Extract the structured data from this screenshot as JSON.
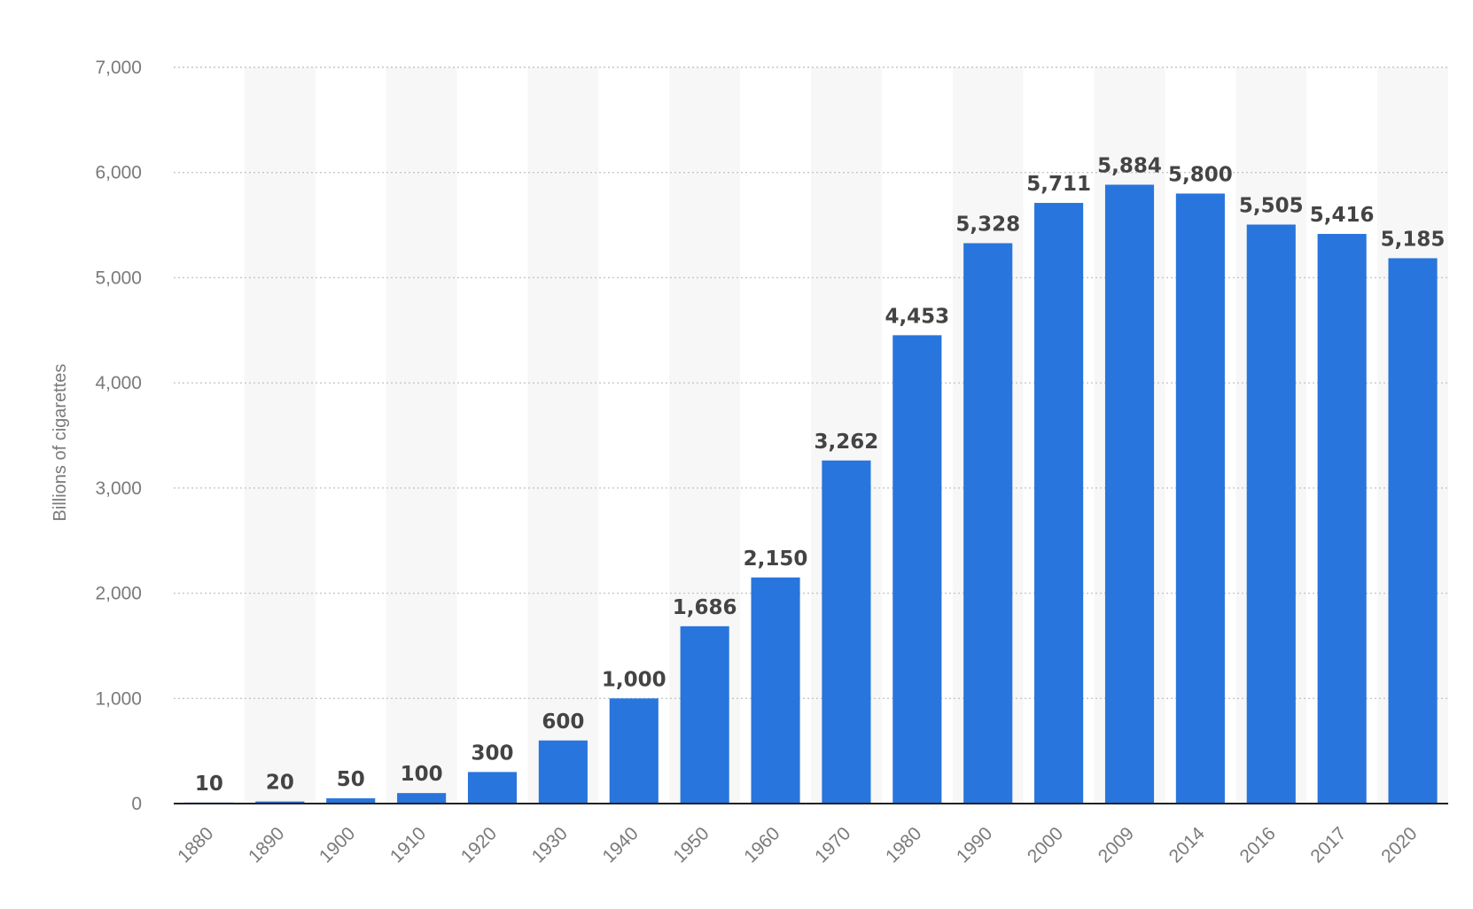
{
  "chart_data": {
    "type": "bar",
    "categories": [
      "1880",
      "1890",
      "1900",
      "1910",
      "1920",
      "1930",
      "1940",
      "1950",
      "1960",
      "1970",
      "1980",
      "1990",
      "2000",
      "2009",
      "2014",
      "2016",
      "2017",
      "2020"
    ],
    "values": [
      10,
      20,
      50,
      100,
      300,
      600,
      1000,
      1686,
      2150,
      3262,
      4453,
      5328,
      5711,
      5884,
      5800,
      5505,
      5416,
      5185
    ],
    "value_labels": [
      "10",
      "20",
      "50",
      "100",
      "300",
      "600",
      "1,000",
      "1,686",
      "2,150",
      "3,262",
      "4,453",
      "5,328",
      "5,711",
      "5,884",
      "5,800",
      "5,505",
      "5,416",
      "5,185"
    ],
    "ylabel": "Billions of cigarettes",
    "xlabel": "",
    "ylim": [
      0,
      7000
    ],
    "yticks": [
      0,
      1000,
      2000,
      3000,
      4000,
      5000,
      6000,
      7000
    ],
    "ytick_labels": [
      "0",
      "1,000",
      "2,000",
      "3,000",
      "4,000",
      "5,000",
      "6,000",
      "7,000"
    ],
    "grid": true,
    "bar_color": "#2875dd",
    "band_color": "#f7f7f7"
  }
}
